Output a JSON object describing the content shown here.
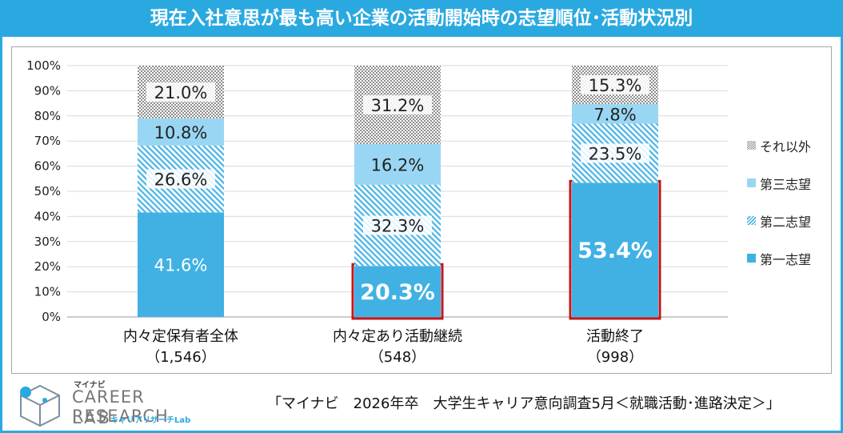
{
  "title": "現在入社意思が最も高い企業の活動開始時の志望順位･活動状況別",
  "chart_data": {
    "type": "stacked-bar",
    "categories": [
      "内々定保有者全体",
      "内々定あり活動継続",
      "活動終了"
    ],
    "category_counts": [
      "（1,546）",
      "（548）",
      "（998）"
    ],
    "series": [
      {
        "name": "第一志望",
        "values": [
          41.6,
          20.3,
          53.4
        ],
        "labels": [
          "41.6%",
          "20.3%",
          "53.4%"
        ]
      },
      {
        "name": "第二志望",
        "values": [
          26.6,
          32.3,
          23.5
        ],
        "labels": [
          "26.6%",
          "32.3%",
          "23.5%"
        ]
      },
      {
        "name": "第三志望",
        "values": [
          10.8,
          16.2,
          7.8
        ],
        "labels": [
          "10.8%",
          "16.2%",
          "7.8%"
        ]
      },
      {
        "name": "それ以外",
        "values": [
          21.0,
          31.2,
          15.3
        ],
        "labels": [
          "21.0%",
          "31.2%",
          "15.3%"
        ]
      }
    ],
    "highlighted": [
      {
        "category": "内々定あり活動継続",
        "series": "第一志望"
      },
      {
        "category": "活動終了",
        "series": "第一志望"
      }
    ],
    "ylim": [
      0,
      100
    ],
    "yticks": [
      "0%",
      "10%",
      "20%",
      "30%",
      "40%",
      "50%",
      "60%",
      "70%",
      "80%",
      "90%",
      "100%"
    ],
    "legend_order": [
      "それ以外",
      "第三志望",
      "第二志望",
      "第一志望"
    ],
    "legend_position": "right"
  },
  "colors": {
    "accent": "#2aa9e0",
    "first": "#41b1e4",
    "third": "#99d6f3",
    "second_stripe": "#48b4e6",
    "other_dots": "#8f8f8f",
    "highlight": "#c0171e"
  },
  "logo": {
    "small": "マイナビ",
    "main": "CAREER RESEARCH",
    "lab": "LAB",
    "sub": "キャリアリサーチLab"
  },
  "source": "「マイナビ　2026年卒　大学生キャリア意向調査5月＜就職活動･進路決定＞」"
}
